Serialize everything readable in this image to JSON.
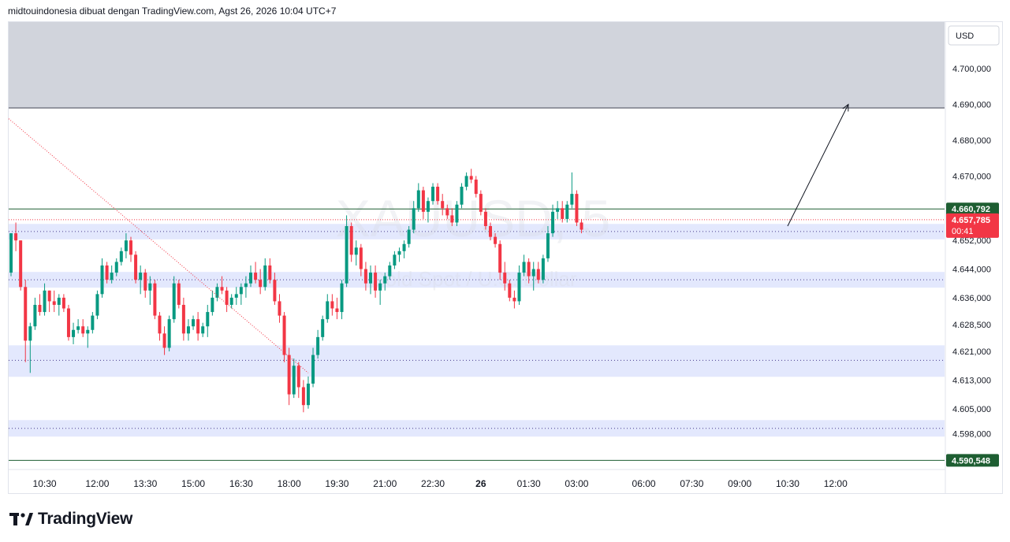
{
  "header": {
    "attribution": "midtouindonesia dibuat dengan TradingView.com, Agst 26, 2026 10:04 UTC+7"
  },
  "footer": {
    "brand": "TradingView"
  },
  "watermark": {
    "symbol": "XAUUSD, 5",
    "subtitle": "Gold Spot / U.S. Dollar"
  },
  "colors": {
    "up": "#089981",
    "down": "#f23645",
    "zone_fill": "#e3e8fd",
    "supply_fill": "#d1d4dc",
    "level_line": "#1e5e32",
    "last_price_bg": "#f23645",
    "axis_text": "#131722"
  },
  "chart_data": {
    "type": "candlestick",
    "symbol": "XAUUSD",
    "timeframe": "5",
    "currency": "USD",
    "ylim": [
      4588,
      4713
    ],
    "xlim": [
      0,
      178
    ],
    "y_ticks": [
      "4.700,000",
      "4.690,000",
      "4.680,000",
      "4.670,000",
      "4.652,000",
      "4.644,000",
      "4.636,000",
      "4.628,500",
      "4.621,000",
      "4.613,000",
      "4.605,000",
      "4.598,000"
    ],
    "y_tick_values": [
      4700,
      4690,
      4680,
      4670,
      4652,
      4644,
      4636,
      4628.5,
      4621,
      4613,
      4605,
      4598
    ],
    "x_ticks": [
      "10:30",
      "12:00",
      "13:30",
      "15:00",
      "16:30",
      "18:00",
      "19:30",
      "21:00",
      "22:30",
      "26",
      "01:30",
      "03:00",
      "06:00",
      "07:30",
      "09:00",
      "10:30",
      "12:00"
    ],
    "x_tick_index": [
      7,
      18,
      28,
      38,
      48,
      58,
      68,
      78,
      88,
      98,
      108,
      118,
      132,
      142,
      152,
      162,
      172
    ],
    "price_labels": [
      {
        "value": 4660.792,
        "text": "4.660,792",
        "kind": "level"
      },
      {
        "value": 4657.785,
        "text": "4.657,785",
        "countdown": "00:41",
        "kind": "last"
      },
      {
        "value": 4590.548,
        "text": "4.590,548",
        "kind": "level"
      }
    ],
    "horizontal_levels": [
      4660.792,
      4590.548
    ],
    "supply_zone": [
      4689,
      4713
    ],
    "zones": [
      {
        "range": [
          4652.3,
          4656.6
        ],
        "mid": 4654.5
      },
      {
        "range": [
          4638.8,
          4643.2
        ],
        "mid": 4641.0
      },
      {
        "range": [
          4613.9,
          4622.7
        ],
        "mid": 4618.5
      },
      {
        "range": [
          4597.2,
          4601.8
        ],
        "mid": 4599.5
      }
    ],
    "trendline": {
      "from": [
        0,
        4686
      ],
      "to": [
        62,
        4615
      ]
    },
    "projection_arrow": {
      "from": [
        162,
        4656
      ],
      "to": [
        174,
        4690
      ]
    },
    "candles": [
      [
        4643,
        4654,
        4642,
        4654
      ],
      [
        4654,
        4657,
        4649,
        4652
      ],
      [
        4652,
        4652,
        4638,
        4639
      ],
      [
        4639,
        4641,
        4618,
        4624
      ],
      [
        4624,
        4629,
        4615,
        4628
      ],
      [
        4628,
        4636,
        4627,
        4634
      ],
      [
        4634,
        4637,
        4631,
        4632
      ],
      [
        4632,
        4640,
        4631,
        4638
      ],
      [
        4638,
        4638,
        4632,
        4635
      ],
      [
        4635,
        4638,
        4632,
        4634
      ],
      [
        4634,
        4637,
        4631,
        4636
      ],
      [
        4636,
        4637,
        4632,
        4633
      ],
      [
        4633,
        4634,
        4624,
        4625
      ],
      [
        4625,
        4629,
        4623,
        4627
      ],
      [
        4627,
        4630,
        4626,
        4628
      ],
      [
        4628,
        4630,
        4625,
        4626
      ],
      [
        4626,
        4628,
        4622,
        4627
      ],
      [
        4627,
        4632,
        4626,
        4631
      ],
      [
        4631,
        4638,
        4630,
        4637
      ],
      [
        4637,
        4647,
        4636,
        4645
      ],
      [
        4645,
        4646,
        4640,
        4641
      ],
      [
        4641,
        4645,
        4640,
        4643
      ],
      [
        4643,
        4647,
        4642,
        4646
      ],
      [
        4646,
        4650,
        4645,
        4649
      ],
      [
        4649,
        4654,
        4647,
        4652
      ],
      [
        4652,
        4653,
        4646,
        4648
      ],
      [
        4648,
        4649,
        4640,
        4641
      ],
      [
        4641,
        4645,
        4637,
        4643
      ],
      [
        4643,
        4644,
        4636,
        4638
      ],
      [
        4638,
        4642,
        4634,
        4640
      ],
      [
        4640,
        4641,
        4630,
        4631
      ],
      [
        4631,
        4632,
        4624,
        4626
      ],
      [
        4626,
        4628,
        4620,
        4622
      ],
      [
        4622,
        4631,
        4621,
        4630
      ],
      [
        4630,
        4642,
        4629,
        4640
      ],
      [
        4640,
        4641,
        4633,
        4634
      ],
      [
        4634,
        4636,
        4624,
        4626
      ],
      [
        4626,
        4630,
        4624,
        4628
      ],
      [
        4628,
        4631,
        4627,
        4630
      ],
      [
        4630,
        4632,
        4624,
        4626
      ],
      [
        4626,
        4629,
        4625,
        4628
      ],
      [
        4628,
        4634,
        4625,
        4632
      ],
      [
        4632,
        4638,
        4631,
        4636
      ],
      [
        4636,
        4640,
        4635,
        4639
      ],
      [
        4639,
        4642,
        4637,
        4638
      ],
      [
        4638,
        4639,
        4632,
        4634
      ],
      [
        4634,
        4637,
        4633,
        4636
      ],
      [
        4636,
        4639,
        4634,
        4637
      ],
      [
        4637,
        4640,
        4634,
        4639
      ],
      [
        4639,
        4642,
        4636,
        4640
      ],
      [
        4640,
        4645,
        4639,
        4643
      ],
      [
        4643,
        4646,
        4640,
        4641
      ],
      [
        4641,
        4644,
        4637,
        4639
      ],
      [
        4639,
        4647,
        4638,
        4645
      ],
      [
        4645,
        4647,
        4640,
        4641
      ],
      [
        4641,
        4643,
        4634,
        4635
      ],
      [
        4635,
        4637,
        4629,
        4631
      ],
      [
        4631,
        4632,
        4618,
        4620
      ],
      [
        4620,
        4622,
        4606,
        4609
      ],
      [
        4609,
        4619,
        4608,
        4617
      ],
      [
        4617,
        4618,
        4608,
        4611
      ],
      [
        4611,
        4613,
        4604,
        4606
      ],
      [
        4606,
        4614,
        4605,
        4612
      ],
      [
        4612,
        4622,
        4611,
        4620
      ],
      [
        4620,
        4627,
        4619,
        4625
      ],
      [
        4625,
        4631,
        4624,
        4630
      ],
      [
        4630,
        4637,
        4629,
        4635
      ],
      [
        4635,
        4637,
        4631,
        4633
      ],
      [
        4633,
        4636,
        4630,
        4632
      ],
      [
        4632,
        4641,
        4630,
        4640
      ],
      [
        4640,
        4659,
        4639,
        4656
      ],
      [
        4656,
        4657,
        4646,
        4648
      ],
      [
        4648,
        4652,
        4645,
        4650
      ],
      [
        4650,
        4651,
        4642,
        4644
      ],
      [
        4644,
        4646,
        4638,
        4640
      ],
      [
        4640,
        4645,
        4637,
        4643
      ],
      [
        4643,
        4645,
        4636,
        4638
      ],
      [
        4638,
        4641,
        4634,
        4640
      ],
      [
        4640,
        4643,
        4638,
        4642
      ],
      [
        4642,
        4646,
        4641,
        4645
      ],
      [
        4645,
        4649,
        4644,
        4648
      ],
      [
        4648,
        4650,
        4646,
        4649
      ],
      [
        4649,
        4652,
        4647,
        4651
      ],
      [
        4651,
        4656,
        4650,
        4655
      ],
      [
        4655,
        4663,
        4654,
        4661
      ],
      [
        4661,
        4668,
        4660,
        4666
      ],
      [
        4666,
        4667,
        4658,
        4660
      ],
      [
        4660,
        4664,
        4657,
        4663
      ],
      [
        4663,
        4668,
        4662,
        4667
      ],
      [
        4667,
        4668,
        4662,
        4663
      ],
      [
        4663,
        4665,
        4659,
        4661
      ],
      [
        4661,
        4662,
        4658,
        4659
      ],
      [
        4659,
        4661,
        4656,
        4657
      ],
      [
        4657,
        4663,
        4656,
        4662
      ],
      [
        4662,
        4668,
        4661,
        4667
      ],
      [
        4667,
        4671,
        4666,
        4670
      ],
      [
        4670,
        4672,
        4668,
        4669
      ],
      [
        4669,
        4670,
        4664,
        4665
      ],
      [
        4665,
        4666,
        4659,
        4660
      ],
      [
        4660,
        4661,
        4655,
        4656
      ],
      [
        4656,
        4657,
        4652,
        4653
      ],
      [
        4653,
        4654,
        4650,
        4651
      ],
      [
        4651,
        4652,
        4641,
        4643
      ],
      [
        4643,
        4646,
        4638,
        4640
      ],
      [
        4640,
        4641,
        4635,
        4636
      ],
      [
        4636,
        4638,
        4633,
        4635
      ],
      [
        4635,
        4645,
        4634,
        4643
      ],
      [
        4643,
        4648,
        4642,
        4646
      ],
      [
        4646,
        4647,
        4640,
        4642
      ],
      [
        4642,
        4646,
        4638,
        4644
      ],
      [
        4644,
        4646,
        4640,
        4641
      ],
      [
        4641,
        4648,
        4640,
        4647
      ],
      [
        4647,
        4656,
        4646,
        4654
      ],
      [
        4654,
        4662,
        4653,
        4660
      ],
      [
        4660,
        4663,
        4658,
        4661
      ],
      [
        4661,
        4663,
        4657,
        4658
      ],
      [
        4658,
        4663,
        4657,
        4662
      ],
      [
        4662,
        4671,
        4661,
        4665
      ],
      [
        4665,
        4666,
        4656,
        4657
      ],
      [
        4657,
        4658,
        4654,
        4655
      ]
    ]
  }
}
